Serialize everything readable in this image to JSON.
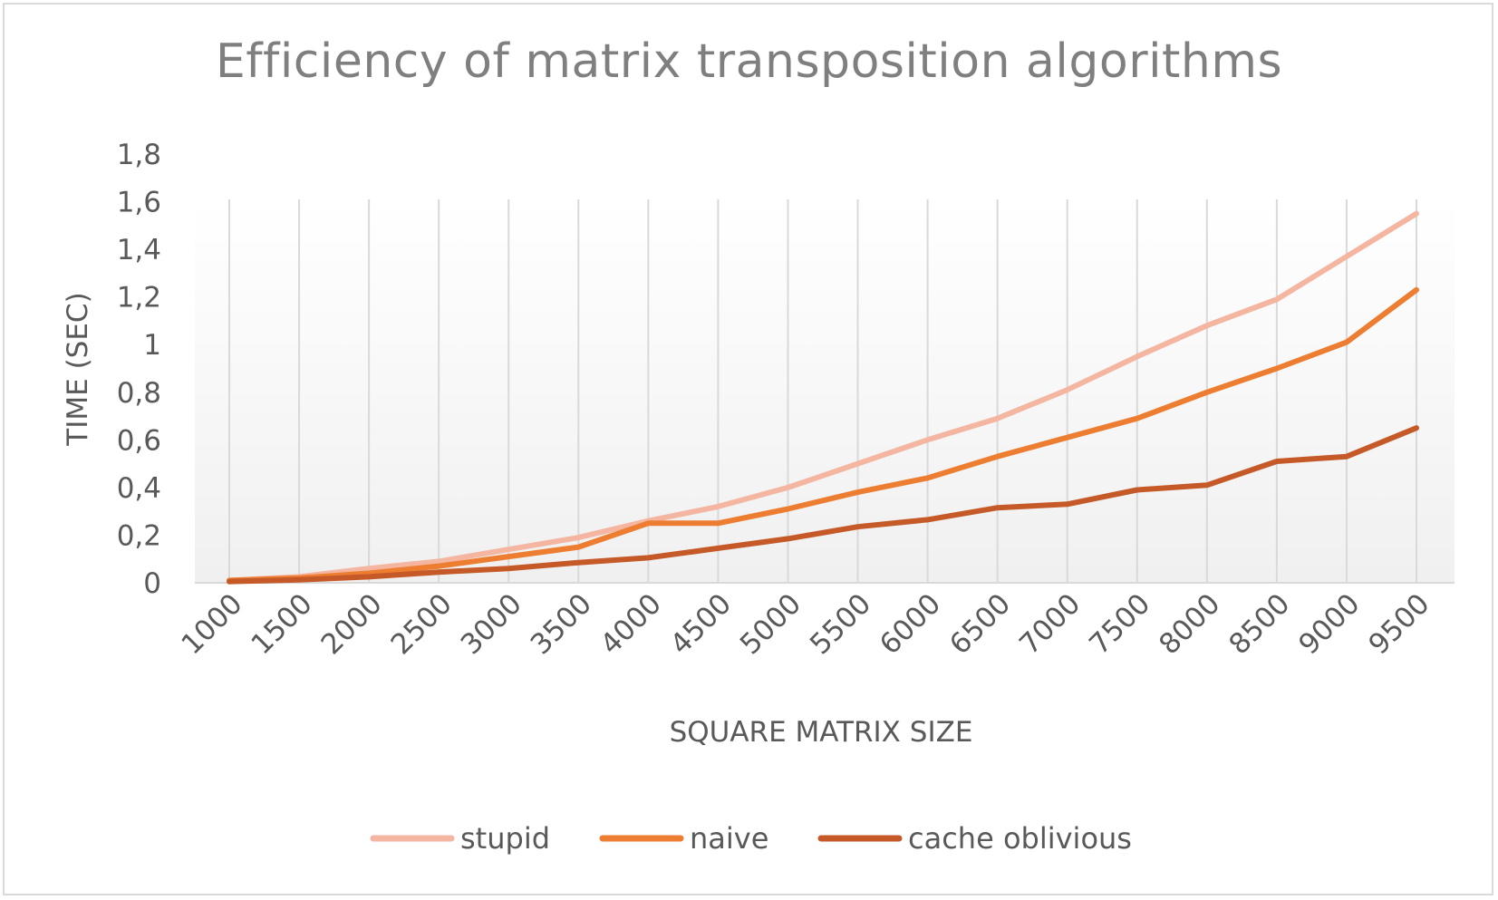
{
  "chart_data": {
    "type": "line",
    "title": "Efficiency of matrix transposition algorithms",
    "xlabel": "SQUARE MATRIX SIZE",
    "ylabel": "TIME (SEC)",
    "categories": [
      "1000",
      "1500",
      "2000",
      "2500",
      "3000",
      "3500",
      "4000",
      "4500",
      "5000",
      "5500",
      "6000",
      "6500",
      "7000",
      "7500",
      "8000",
      "8500",
      "9000",
      "9500"
    ],
    "ylim": [
      0,
      1.8
    ],
    "yticks": [
      "0",
      "0,2",
      "0,4",
      "0,6",
      "0,8",
      "1",
      "1,2",
      "1,4",
      "1,6",
      "1,8"
    ],
    "grid": "vertical",
    "legend": "bottom",
    "series": [
      {
        "name": "stupid",
        "color": "#f4b6a1",
        "values": [
          0.01,
          0.025,
          0.06,
          0.09,
          0.14,
          0.19,
          0.26,
          0.32,
          0.4,
          0.5,
          0.6,
          0.69,
          0.81,
          0.95,
          1.08,
          1.19,
          1.37,
          1.55
        ]
      },
      {
        "name": "naive",
        "color": "#ed7d31",
        "values": [
          0.01,
          0.02,
          0.04,
          0.07,
          0.11,
          0.15,
          0.25,
          0.25,
          0.31,
          0.38,
          0.44,
          0.53,
          0.61,
          0.69,
          0.8,
          0.9,
          1.01,
          1.23
        ]
      },
      {
        "name": "cache oblivious",
        "color": "#c55a28",
        "values": [
          0.005,
          0.012,
          0.025,
          0.045,
          0.06,
          0.085,
          0.105,
          0.145,
          0.185,
          0.235,
          0.265,
          0.315,
          0.33,
          0.39,
          0.41,
          0.51,
          0.53,
          0.65
        ]
      }
    ]
  }
}
